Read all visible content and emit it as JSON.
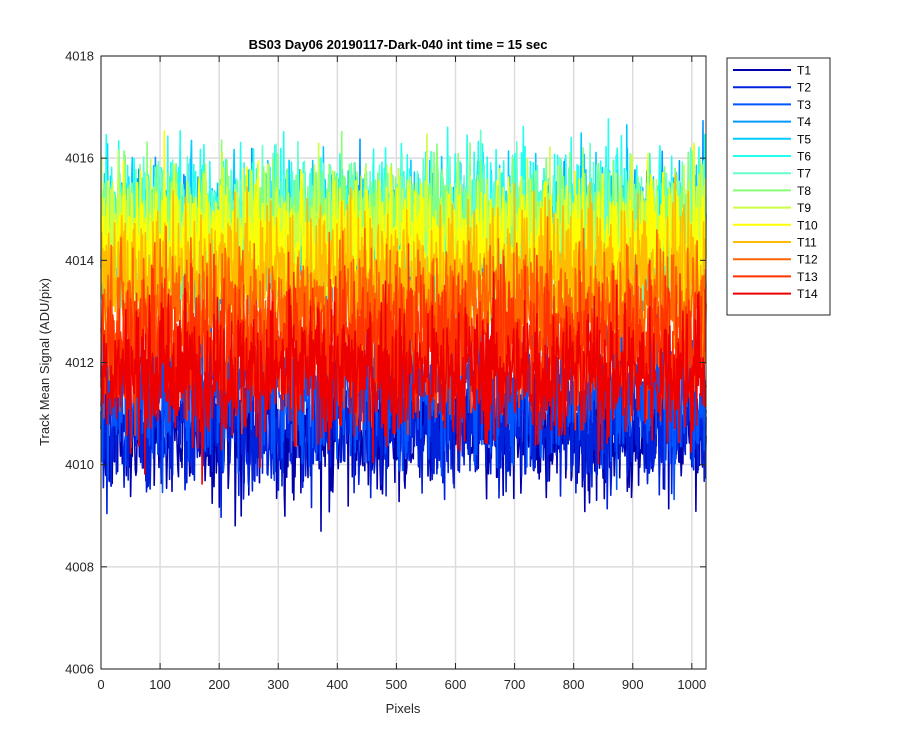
{
  "chart_data": {
    "type": "line",
    "title": "BS03 Day06 20190117-Dark-040 int time = 15 sec",
    "xlabel": "Pixels",
    "ylabel": "Track Mean Signal (ADU/pix)",
    "xlim": [
      0,
      1024
    ],
    "ylim": [
      4006,
      4018
    ],
    "xticks": [
      0,
      100,
      200,
      300,
      400,
      500,
      600,
      700,
      800,
      900,
      1000
    ],
    "yticks": [
      4006,
      4008,
      4010,
      4012,
      4014,
      4016,
      4018
    ],
    "grid": true,
    "legend_position": "outside-right",
    "colormap": "jet",
    "series": [
      {
        "name": "T1",
        "color": "#0000aa",
        "mean": 4010.6,
        "spread": 1.0
      },
      {
        "name": "T2",
        "color": "#0022dd",
        "mean": 4010.8,
        "spread": 1.0
      },
      {
        "name": "T3",
        "color": "#0055ff",
        "mean": 4011.5,
        "spread": 1.1
      },
      {
        "name": "T4",
        "color": "#0099ff",
        "mean": 4014.4,
        "spread": 1.1
      },
      {
        "name": "T5",
        "color": "#00ccff",
        "mean": 4014.6,
        "spread": 1.1
      },
      {
        "name": "T6",
        "color": "#22ffee",
        "mean": 4014.8,
        "spread": 1.1
      },
      {
        "name": "T7",
        "color": "#66ffcc",
        "mean": 4014.7,
        "spread": 1.1
      },
      {
        "name": "T8",
        "color": "#88ff77",
        "mean": 4014.6,
        "spread": 1.1
      },
      {
        "name": "T9",
        "color": "#ccff44",
        "mean": 4014.5,
        "spread": 1.1
      },
      {
        "name": "T10",
        "color": "#ffff00",
        "mean": 4014.2,
        "spread": 1.1
      },
      {
        "name": "T11",
        "color": "#ffbb00",
        "mean": 4013.7,
        "spread": 1.1
      },
      {
        "name": "T12",
        "color": "#ff6600",
        "mean": 4013.0,
        "spread": 1.1
      },
      {
        "name": "T13",
        "color": "#ff3300",
        "mean": 4012.4,
        "spread": 1.1
      },
      {
        "name": "T14",
        "color": "#ee0000",
        "mean": 4011.8,
        "spread": 1.1
      }
    ]
  }
}
